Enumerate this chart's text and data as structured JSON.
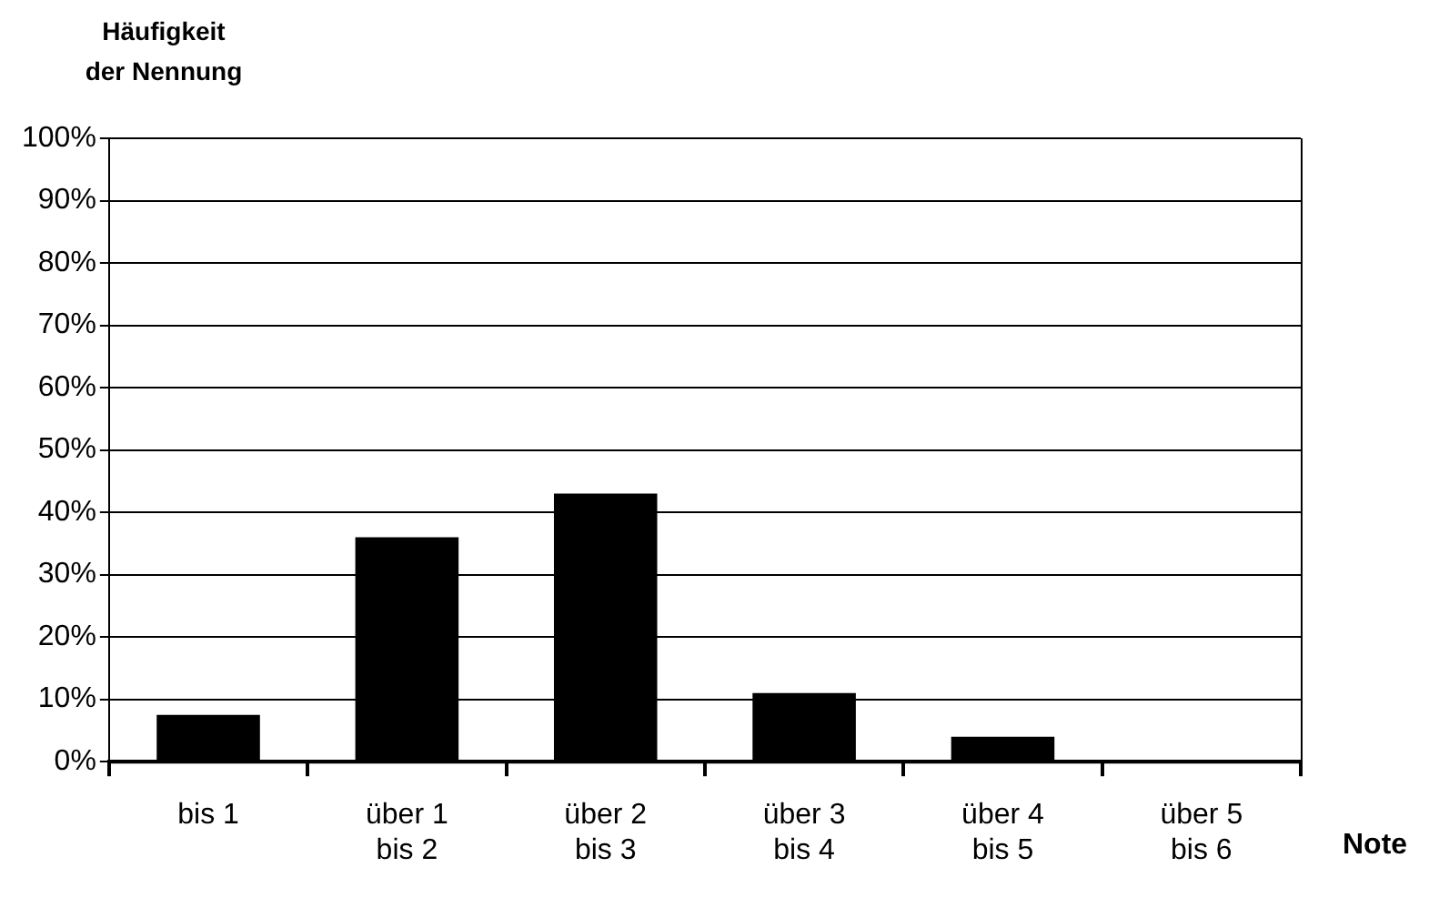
{
  "chart_data": {
    "type": "bar",
    "ylabel": "Häufigkeit\nder Nennung",
    "xlabel": "Note",
    "categories": [
      "bis 1",
      "über 1\nbis 2",
      "über 2\nbis 3",
      "über 3\nbis 4",
      "über 4\nbis 5",
      "über 5\nbis 6"
    ],
    "values": [
      7.5,
      36,
      43,
      11,
      4,
      0
    ],
    "color": "#000000",
    "ylim": [
      0,
      100
    ],
    "yticks": [
      {
        "value": 0,
        "label": "0%"
      },
      {
        "value": 10,
        "label": "10%"
      },
      {
        "value": 20,
        "label": "20%"
      },
      {
        "value": 30,
        "label": "30%"
      },
      {
        "value": 40,
        "label": "40%"
      },
      {
        "value": 50,
        "label": "50%"
      },
      {
        "value": 60,
        "label": "60%"
      },
      {
        "value": 70,
        "label": "70%"
      },
      {
        "value": 80,
        "label": "80%"
      },
      {
        "value": 90,
        "label": "90%"
      },
      {
        "value": 100,
        "label": "100%"
      }
    ],
    "grid": "y",
    "legend": false
  }
}
